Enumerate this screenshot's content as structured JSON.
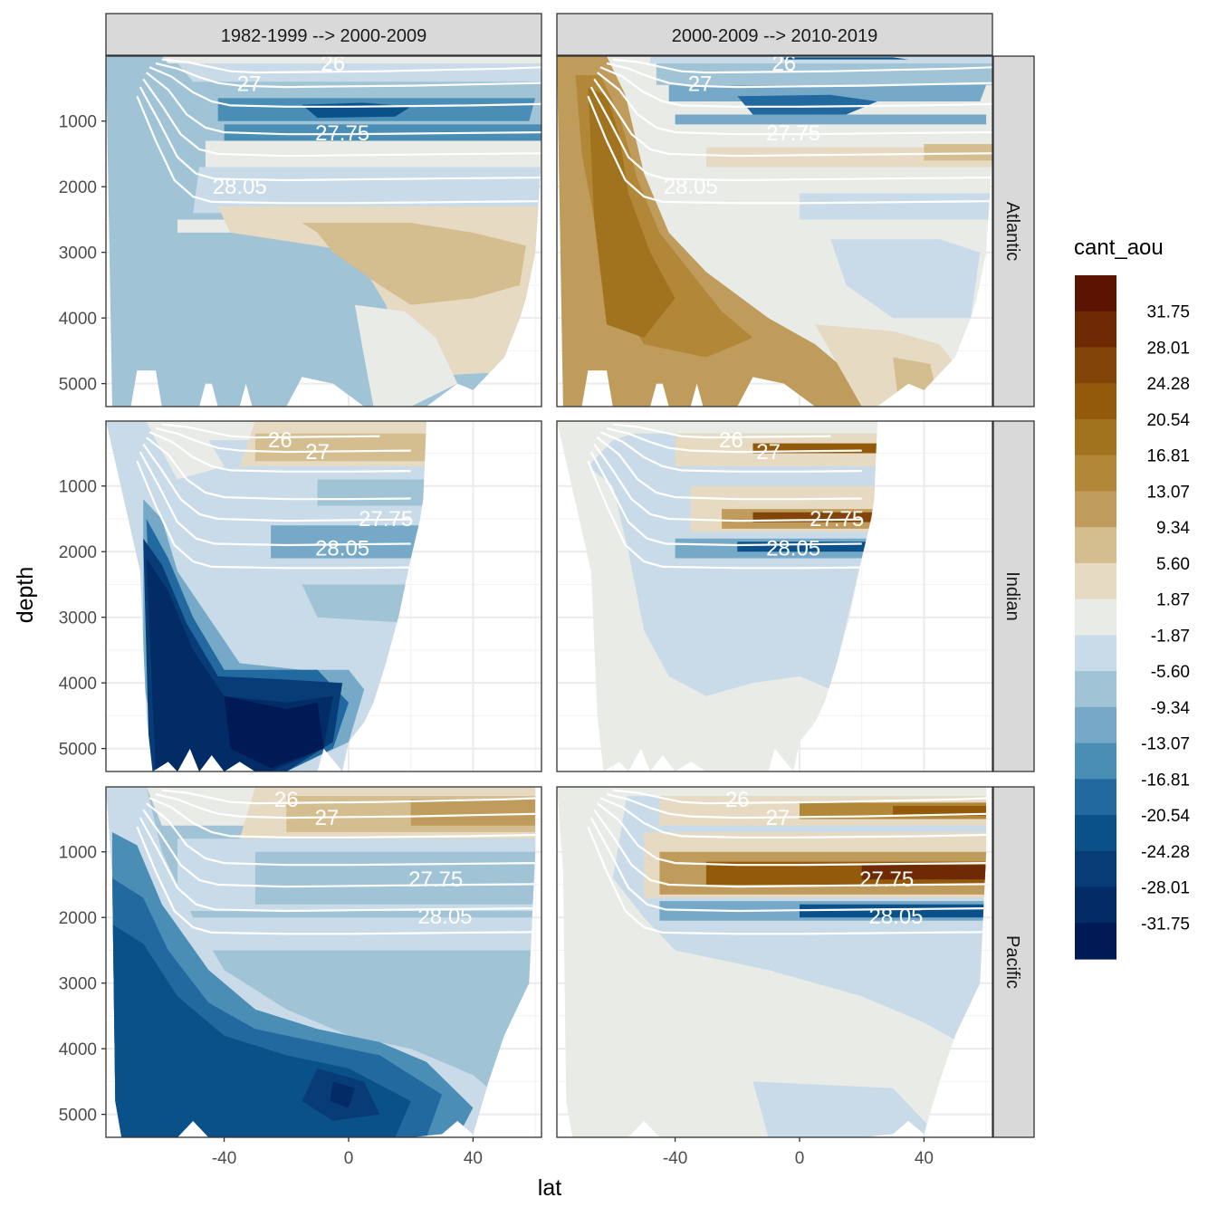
{
  "chart_data": {
    "type": "heatmap",
    "subtype": "faceted filled-contour ocean sections",
    "xlabel": "lat",
    "ylabel": "depth",
    "xlim": [
      -78,
      62
    ],
    "ylim": [
      5350,
      10
    ],
    "x_ticks": [
      -40,
      0,
      40
    ],
    "x_tick_labels": [
      "-40",
      "0",
      "40"
    ],
    "y_ticks": [
      1000,
      2000,
      3000,
      4000,
      5000
    ],
    "y_tick_labels": [
      "1000",
      "2000",
      "3000",
      "4000",
      "5000"
    ],
    "y_reversed": true,
    "grid": true,
    "theme": "bw",
    "facet_columns": [
      "1982-1999 --> 2000-2009",
      "2000-2009 --> 2010-2019"
    ],
    "facet_rows": [
      "Atlantic",
      "Indian",
      "Pacific"
    ],
    "basin_north_limit": {
      "Atlantic": 62,
      "Indian": 25,
      "Pacific": 60
    },
    "isopycnal_labels": [
      "26",
      "27",
      "27.75",
      "28.05"
    ],
    "legend": {
      "title": "cant_aou",
      "position": "right",
      "labels": [
        "31.75",
        "28.01",
        "24.28",
        "20.54",
        "16.81",
        "13.07",
        "9.34",
        "5.60",
        "1.87",
        "-1.87",
        "-5.60",
        "-9.34",
        "-13.07",
        "-16.81",
        "-20.54",
        "-24.28",
        "-28.01",
        "-31.75"
      ],
      "colors_high_to_low": [
        "#5c1402",
        "#6e2a04",
        "#824408",
        "#935a0c",
        "#a2731f",
        "#b28838",
        "#c09c5c",
        "#d4bd8e",
        "#e6dac2",
        "#e9ebe7",
        "#c9dbe8",
        "#a0c3d6",
        "#75a9c7",
        "#4a8db5",
        "#22699f",
        "#0a518a",
        "#073c77",
        "#032b66",
        "#001a55"
      ]
    }
  }
}
